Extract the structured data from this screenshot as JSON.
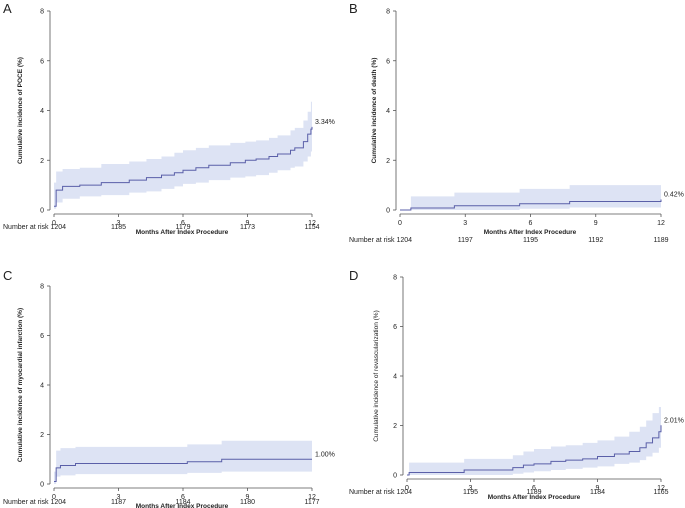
{
  "chart_data": [
    {
      "panel": "A",
      "type": "line",
      "ylabel": "Cumulative incidence of POCE (%)",
      "xlabel": "Months After Index Procedure",
      "xlim": [
        0,
        12
      ],
      "ylim": [
        0,
        8
      ],
      "xticks": [
        "0",
        "3",
        "6",
        "9",
        "12"
      ],
      "yticks": [
        "0",
        "2",
        "4",
        "6",
        "8"
      ],
      "end_label": "3.34%",
      "risk_label": "Number at risk 1204",
      "risk_values": [
        "1185",
        "1179",
        "1173",
        "1154"
      ],
      "series": [
        {
          "name": "POCE",
          "x": [
            0,
            0.1,
            0.4,
            1.2,
            2.2,
            3.5,
            4.3,
            5.0,
            5.6,
            6.0,
            6.6,
            7.2,
            8.2,
            8.9,
            9.4,
            10.0,
            10.4,
            11.0,
            11.2,
            11.6,
            11.8,
            11.95,
            12
          ],
          "y": [
            0.15,
            0.8,
            0.95,
            1.0,
            1.1,
            1.2,
            1.3,
            1.4,
            1.5,
            1.6,
            1.7,
            1.8,
            1.9,
            2.0,
            2.05,
            2.15,
            2.25,
            2.4,
            2.5,
            2.75,
            3.05,
            3.25,
            3.34
          ]
        }
      ],
      "ci_upper": [
        1.1,
        1.55,
        1.65,
        1.7,
        1.85,
        1.95,
        2.05,
        2.15,
        2.3,
        2.4,
        2.5,
        2.6,
        2.7,
        2.75,
        2.8,
        2.9,
        3.0,
        3.2,
        3.3,
        3.6,
        3.95,
        4.35,
        4.45
      ],
      "ci_lower": [
        0.05,
        0.3,
        0.45,
        0.55,
        0.6,
        0.7,
        0.75,
        0.85,
        0.95,
        1.05,
        1.1,
        1.2,
        1.3,
        1.35,
        1.4,
        1.5,
        1.6,
        1.7,
        1.75,
        1.95,
        2.15,
        2.35,
        2.45
      ]
    },
    {
      "panel": "B",
      "type": "line",
      "ylabel": "Cumulative incidence of death (%)",
      "xlabel": "Months After Index Procedure",
      "xlim": [
        0,
        12
      ],
      "ylim": [
        0,
        8
      ],
      "xticks": [
        "0",
        "3",
        "6",
        "9",
        "12"
      ],
      "yticks": [
        "0",
        "2",
        "4",
        "6",
        "8"
      ],
      "end_label": "0.42%",
      "risk_label": "Number at risk 1204",
      "risk_values": [
        "1197",
        "1195",
        "1192",
        "1189"
      ],
      "series": [
        {
          "name": "Death",
          "x": [
            0,
            0.5,
            2.5,
            5.5,
            7.8,
            12
          ],
          "y": [
            0,
            0.08,
            0.17,
            0.25,
            0.34,
            0.42
          ]
        }
      ],
      "ci_upper": [
        0,
        0.55,
        0.7,
        0.85,
        1.0,
        1.0
      ],
      "ci_lower": [
        0,
        0.0,
        0.0,
        0.05,
        0.1,
        0.1
      ]
    },
    {
      "panel": "C",
      "type": "line",
      "ylabel": "Cumulative incidence of myocardial infarction (%)",
      "xlabel": "Months After Index Procedure",
      "xlim": [
        0,
        12
      ],
      "ylim": [
        0,
        8
      ],
      "xticks": [
        "0",
        "3",
        "6",
        "9",
        "12"
      ],
      "yticks": [
        "0",
        "2",
        "4",
        "6",
        "8"
      ],
      "end_label": "1.00%",
      "risk_label": "Number at risk 1204",
      "risk_values": [
        "1187",
        "1184",
        "1180",
        "1177"
      ],
      "series": [
        {
          "name": "MI",
          "x": [
            0,
            0.1,
            0.3,
            1.0,
            6.2,
            7.8,
            12
          ],
          "y": [
            0.1,
            0.65,
            0.75,
            0.83,
            0.9,
            1.0,
            1.0
          ]
        }
      ],
      "ci_upper": [
        0.5,
        1.35,
        1.45,
        1.5,
        1.6,
        1.75,
        1.75
      ],
      "ci_lower": [
        0,
        0.3,
        0.35,
        0.4,
        0.45,
        0.5,
        0.5
      ]
    },
    {
      "panel": "D",
      "type": "line",
      "ylabel": "Cumulative incidence of revascularization (%)",
      "xlabel": "Months After Index Procedure",
      "xlim": [
        0,
        12
      ],
      "ylim": [
        0,
        8
      ],
      "xticks": [
        "0",
        "3",
        "6",
        "9",
        "12"
      ],
      "yticks": [
        "0",
        "2",
        "4",
        "6",
        "8"
      ],
      "end_label": "2.01%",
      "risk_label": "Number at risk 1204",
      "risk_values": [
        "1195",
        "1189",
        "1184",
        "1165"
      ],
      "series": [
        {
          "name": "Revascularization",
          "x": [
            0,
            0.1,
            2.7,
            5.0,
            5.5,
            6.0,
            6.8,
            7.5,
            8.3,
            9.0,
            9.8,
            10.5,
            11.0,
            11.3,
            11.6,
            11.9,
            12
          ],
          "y": [
            0,
            0.1,
            0.2,
            0.3,
            0.4,
            0.45,
            0.55,
            0.6,
            0.65,
            0.75,
            0.85,
            0.95,
            1.1,
            1.3,
            1.5,
            1.75,
            2.01
          ]
        }
      ],
      "ci_upper": [
        0,
        0.5,
        0.65,
        0.8,
        0.95,
        1.05,
        1.15,
        1.2,
        1.3,
        1.4,
        1.55,
        1.75,
        1.95,
        2.2,
        2.5,
        2.75,
        2.85
      ],
      "ci_lower": [
        0,
        0,
        0,
        0.05,
        0.1,
        0.15,
        0.2,
        0.25,
        0.3,
        0.35,
        0.45,
        0.5,
        0.6,
        0.75,
        0.9,
        1.1,
        1.2
      ]
    }
  ],
  "colors": {
    "line": "#5a5fa8",
    "band": "#dde3f4",
    "axis": "#555555"
  }
}
